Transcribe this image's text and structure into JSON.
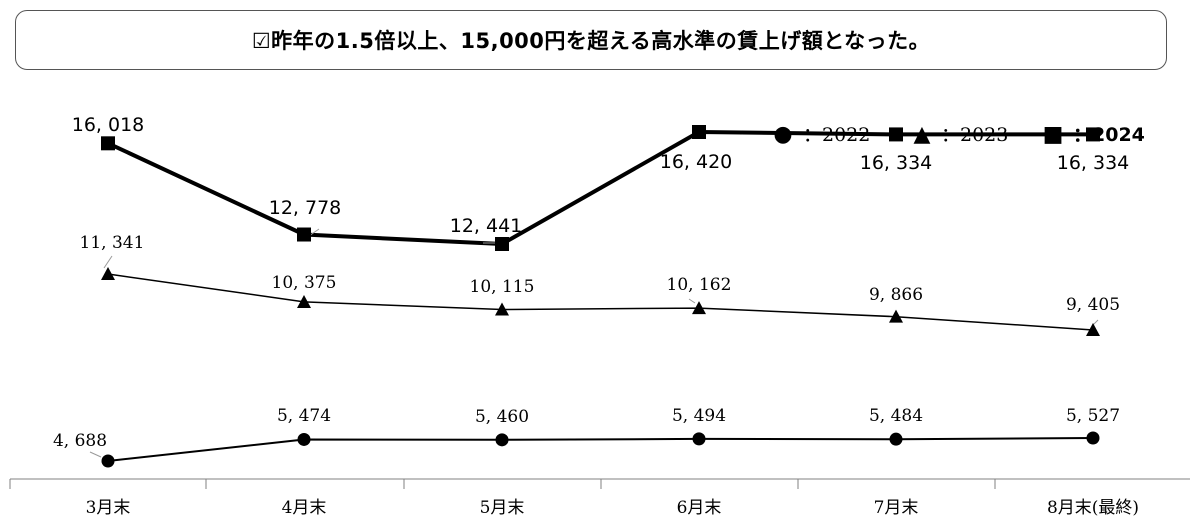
{
  "header": {
    "title": "☑昨年の1.5倍以上、15,000円を超える高水準の賃上げ額となった。"
  },
  "colors": {
    "line": "#000000",
    "axis": "#808080",
    "leader": "#999999"
  },
  "chart_data": {
    "type": "line",
    "categories": [
      "3月末",
      "4月末",
      "5月末",
      "6月末",
      "7月末",
      "8月末(最終)"
    ],
    "series": [
      {
        "name": "2022",
        "marker": "circle",
        "legend_symbol": "●",
        "legend_text": "：2022",
        "values": [
          4688,
          5474,
          5460,
          5494,
          5484,
          5527
        ],
        "labels": [
          "4, 688",
          "5, 474",
          "5, 460",
          "5, 494",
          "5, 484",
          "5, 527"
        ]
      },
      {
        "name": "2023",
        "marker": "triangle",
        "legend_symbol": "▲",
        "legend_text": "：2023",
        "values": [
          11341,
          10375,
          10115,
          10162,
          9866,
          9405
        ],
        "labels": [
          "11, 341",
          "10, 375",
          "10, 115",
          "10, 162",
          "9, 866",
          "9, 405"
        ]
      },
      {
        "name": "2024",
        "marker": "square",
        "legend_symbol": "■",
        "legend_text": "：2024",
        "values": [
          16018,
          12778,
          12441,
          16420,
          16334,
          16334
        ],
        "labels": [
          "16, 018",
          "12, 778",
          "12, 441",
          "16, 420",
          "16, 334",
          "16, 334"
        ]
      }
    ],
    "legend_position": "top-right",
    "grid": false
  }
}
